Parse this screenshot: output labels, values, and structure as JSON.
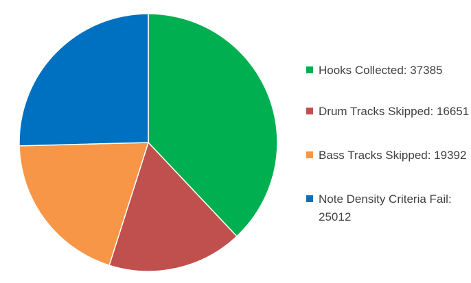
{
  "chart_data": {
    "type": "pie",
    "categories": [
      "Hooks Collected",
      "Drum Tracks Skipped",
      "Bass Tracks Skipped",
      "Note Density Criteria Fail"
    ],
    "values": [
      37385,
      16651,
      19392,
      25012
    ],
    "legend_labels": [
      "Hooks Collected: 37385",
      "Drum Tracks Skipped: 16651",
      "Bass Tracks Skipped: 19392",
      "Note Density Criteria Fail: 25012"
    ],
    "colors": [
      "#00b050",
      "#c0504d",
      "#f79646",
      "#0070c0"
    ],
    "legend_position": "right",
    "start_angle": "top, clockwise"
  }
}
